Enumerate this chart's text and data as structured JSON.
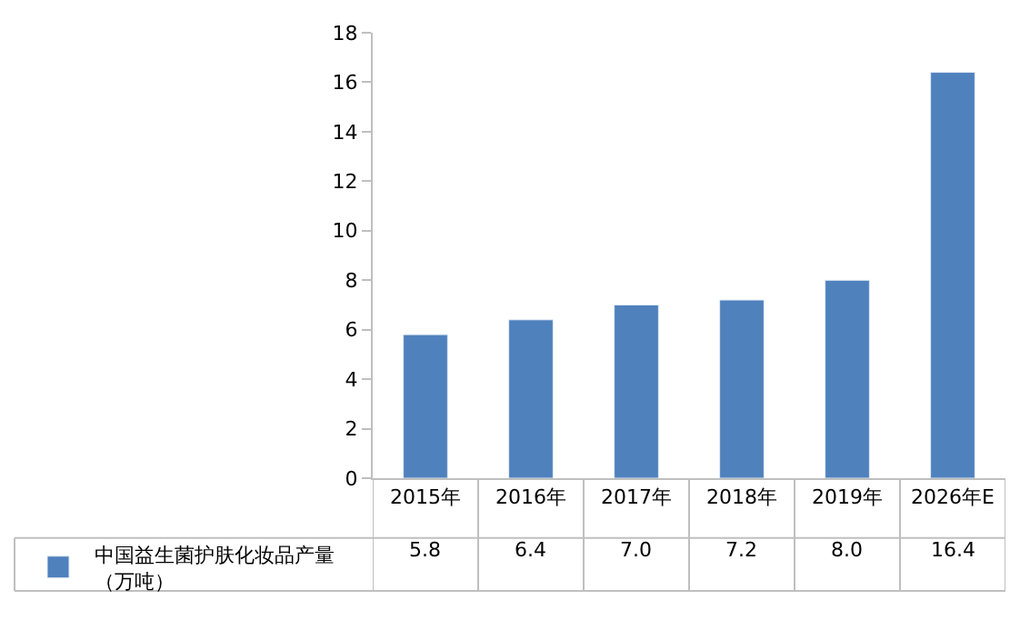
{
  "chart_data": {
    "type": "bar",
    "categories": [
      "2015年",
      "2016年",
      "2017年",
      "2018年",
      "2019年",
      "2026年E"
    ],
    "series": [
      {
        "name": "中国益生菌护肤化妆品产量（万吨）",
        "color": "#4f81bd",
        "values": [
          5.8,
          6.4,
          7.0,
          7.2,
          8.0,
          16.4
        ],
        "value_labels": [
          "5.8",
          "6.4",
          "7.0",
          "7.2",
          "8.0",
          "16.4"
        ]
      }
    ],
    "ylim": [
      0,
      18
    ],
    "yticks": [
      0,
      2,
      4,
      6,
      8,
      10,
      12,
      14,
      16,
      18
    ],
    "legend": "bottom left"
  }
}
